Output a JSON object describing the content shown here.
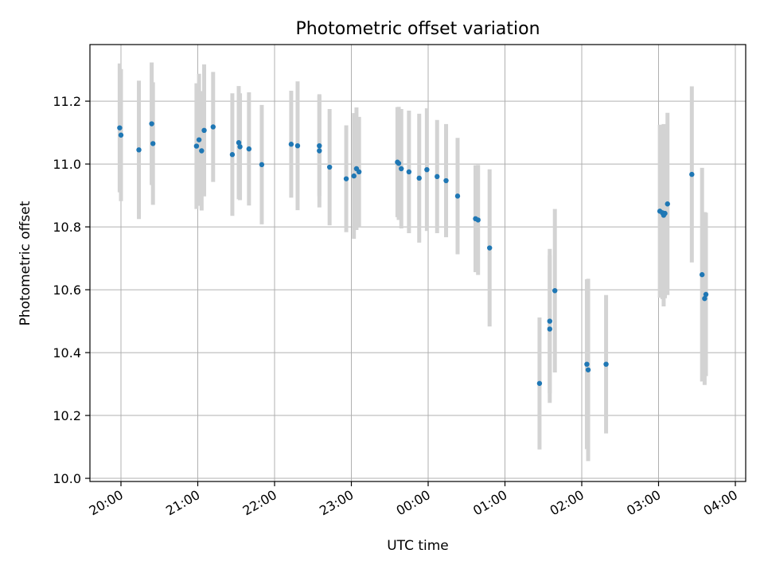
{
  "chart_data": {
    "type": "scatter",
    "title": "Photometric offset variation",
    "xlabel": "UTC time",
    "ylabel": "Photometric offset",
    "ylim": [
      9.99,
      11.38
    ],
    "yticks": [
      10.0,
      10.2,
      10.4,
      10.6,
      10.8,
      11.0,
      11.2
    ],
    "yticklabels": [
      "10.0",
      "10.2",
      "10.4",
      "10.6",
      "10.8",
      "11.0",
      "11.2"
    ],
    "xticks": [
      "20:00",
      "21:00",
      "22:00",
      "23:00",
      "00:00",
      "01:00",
      "02:00",
      "03:00",
      "04:00"
    ],
    "grid": true,
    "colors": {
      "points": "#1f77b4",
      "errorbars": "#d3d3d3"
    },
    "series": [
      {
        "x": [
          "19:59",
          "20:00",
          "20:14",
          "20:24",
          "20:25",
          "20:59",
          "21:01",
          "21:03",
          "21:05",
          "21:12",
          "21:27",
          "21:32",
          "21:33",
          "21:40",
          "21:50",
          "22:13",
          "22:18",
          "22:35",
          "22:35",
          "22:43",
          "22:56",
          "23:02",
          "23:04",
          "23:06",
          "23:36",
          "23:37",
          "23:39",
          "23:45",
          "23:53",
          "23:59",
          "00:07",
          "00:14",
          "00:23",
          "00:37",
          "00:39",
          "00:48",
          "01:27",
          "01:35",
          "01:35",
          "01:39",
          "02:04",
          "02:05",
          "02:19",
          "03:01",
          "03:03",
          "03:04",
          "03:05",
          "03:07",
          "03:26",
          "03:34",
          "03:36",
          "03:37"
        ],
        "y": [
          11.115,
          11.092,
          11.045,
          11.128,
          11.065,
          11.057,
          11.077,
          11.042,
          11.107,
          11.118,
          11.03,
          11.068,
          11.055,
          11.048,
          10.998,
          11.063,
          11.058,
          11.058,
          11.042,
          10.99,
          10.953,
          10.962,
          10.985,
          10.975,
          11.006,
          11.002,
          10.985,
          10.975,
          10.955,
          10.982,
          10.96,
          10.947,
          10.898,
          10.826,
          10.822,
          10.733,
          10.302,
          10.5,
          10.475,
          10.597,
          10.363,
          10.345,
          10.363,
          10.85,
          10.845,
          10.837,
          10.843,
          10.873,
          10.967,
          10.648,
          10.572,
          10.585
        ],
        "yerr": [
          0.205,
          0.21,
          0.22,
          0.195,
          0.195,
          0.2,
          0.21,
          0.19,
          0.21,
          0.175,
          0.195,
          0.18,
          0.17,
          0.18,
          0.19,
          0.17,
          0.205,
          0.16,
          0.18,
          0.185,
          0.17,
          0.2,
          0.195,
          0.175,
          0.175,
          0.18,
          0.19,
          0.195,
          0.205,
          0.195,
          0.18,
          0.18,
          0.185,
          0.17,
          0.175,
          0.25,
          0.21,
          0.23,
          0.235,
          0.26,
          0.27,
          0.29,
          0.22,
          0.275,
          0.275,
          0.29,
          0.27,
          0.29,
          0.28,
          0.34,
          0.275,
          0.26
        ]
      }
    ]
  }
}
